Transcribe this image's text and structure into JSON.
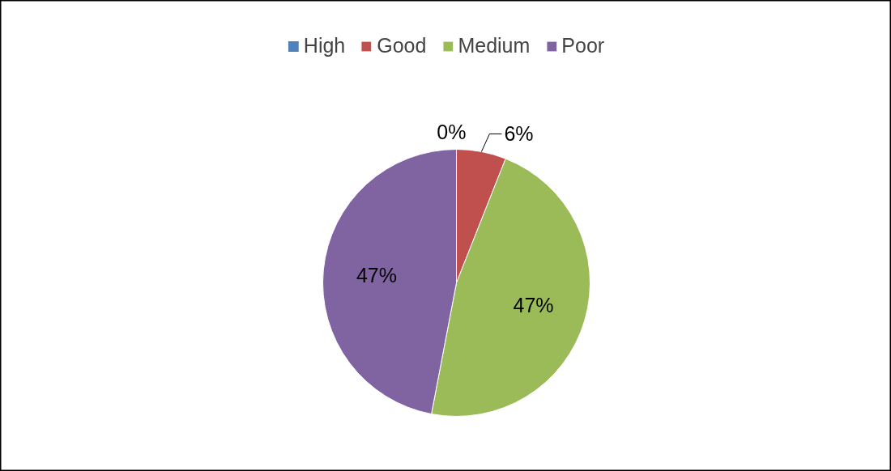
{
  "chart_data": {
    "type": "pie",
    "categories": [
      "High",
      "Good",
      "Medium",
      "Poor"
    ],
    "values": [
      0,
      6,
      47,
      47
    ],
    "colors": [
      "#4f81bd",
      "#c0504d",
      "#9bbb59",
      "#8064a2"
    ],
    "value_labels": [
      "0%",
      "6%",
      "47%",
      "47%"
    ],
    "legend": "top"
  }
}
